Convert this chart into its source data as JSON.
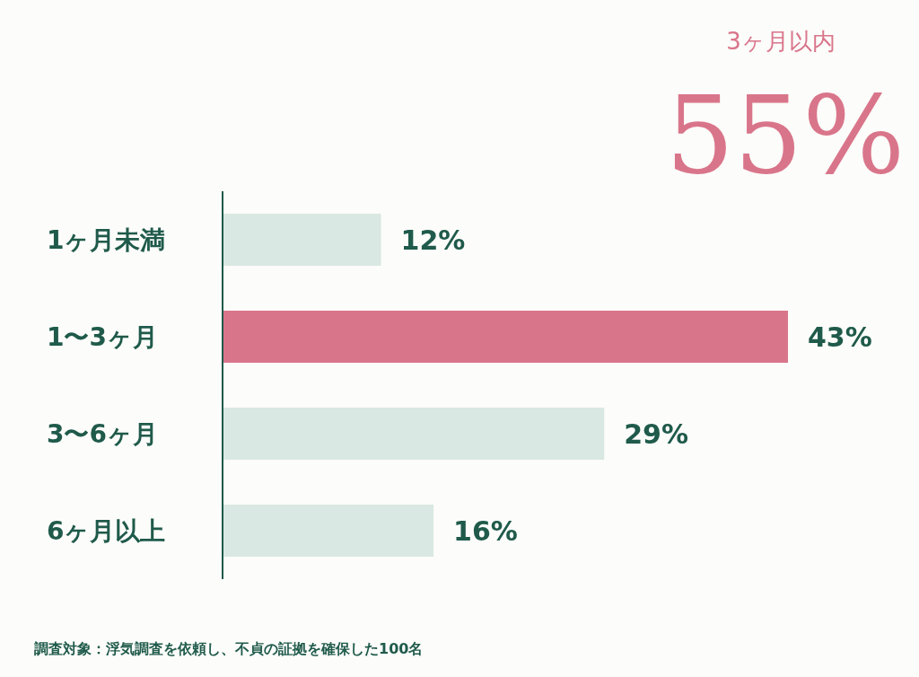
{
  "chart_data": {
    "type": "bar",
    "orientation": "horizontal",
    "categories": [
      "1ヶ月未満",
      "1〜3ヶ月",
      "3〜6ヶ月",
      "6ヶ月以上"
    ],
    "values": [
      12,
      43,
      29,
      16
    ],
    "colors": [
      "#d9e8e2",
      "#d9758a",
      "#d9e8e2",
      "#d9e8e2"
    ],
    "value_labels": [
      "12%",
      "43%",
      "29%",
      "16%"
    ],
    "annotations": [
      "3ヶ月以内",
      "55%",
      "調査対象：浮気調査を依頼し、不貞の証拠を確保した100名"
    ]
  }
}
